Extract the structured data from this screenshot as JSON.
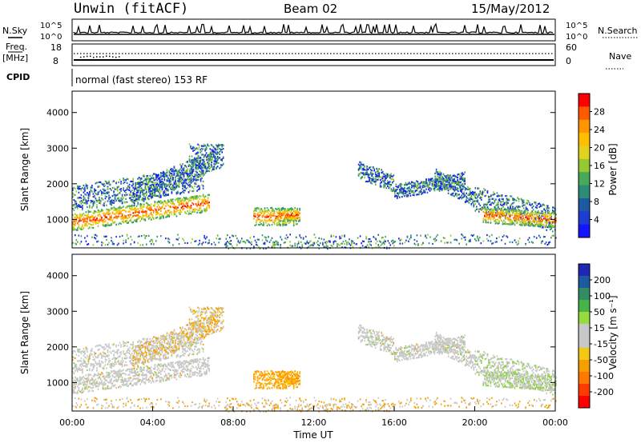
{
  "header": {
    "station": "Unwin (fitACF)",
    "beam": "Beam 02",
    "date": "15/May/2012"
  },
  "panels": {
    "nsky": {
      "label": "N.Sky",
      "left_ticks": [
        "10^5",
        "10^0"
      ],
      "right_ticks": [
        "10^5",
        "10^0"
      ],
      "right_label": "N.Search"
    },
    "freq": {
      "label_top": "Freq.",
      "label_bottom": "[MHz]",
      "left_ticks": [
        "18",
        "8"
      ],
      "right_ticks": [
        "60",
        "0"
      ],
      "right_label": "Nave"
    },
    "cpid": {
      "label": "CPID",
      "text": "normal (fast stereo) 153 RF"
    }
  },
  "chart_data": [
    {
      "type": "heatmap",
      "name": "power",
      "ylabel": "Slant Range [km]",
      "y_ticks": [
        1000,
        2000,
        3000,
        4000
      ],
      "ylim": [
        200,
        4600
      ],
      "colorbar": {
        "label": "Power [dB]",
        "ticks": [
          "28",
          "24",
          "20",
          "16",
          "12",
          "8",
          "4"
        ],
        "colors": [
          "#ff0000",
          "#ff5a00",
          "#ff9600",
          "#ffbe00",
          "#e0d21e",
          "#96c832",
          "#46aa5a",
          "#2d8c78",
          "#1e5aa0",
          "#1e3cd2",
          "#1414ff"
        ]
      }
    },
    {
      "type": "heatmap",
      "name": "velocity",
      "ylabel": "Slant Range [km]",
      "y_ticks": [
        1000,
        2000,
        3000,
        4000
      ],
      "ylim": [
        200,
        4600
      ],
      "xlabel": "Time UT",
      "x_ticks": [
        "00:00",
        "04:00",
        "08:00",
        "12:00",
        "16:00",
        "20:00",
        "00:00"
      ],
      "colorbar": {
        "label": "Velocity [m s⁻¹]",
        "ticks": [
          "200",
          "100",
          "50",
          "15",
          "-15",
          "-50",
          "-100",
          "-200"
        ],
        "colors": [
          "#1e28b4",
          "#1e5aa0",
          "#328c64",
          "#46b446",
          "#96dc3c",
          "#c8c8c8",
          "#c8c8c8",
          "#f5c814",
          "#f5a000",
          "#ff7800",
          "#ff3c00",
          "#ff0000"
        ]
      }
    }
  ]
}
